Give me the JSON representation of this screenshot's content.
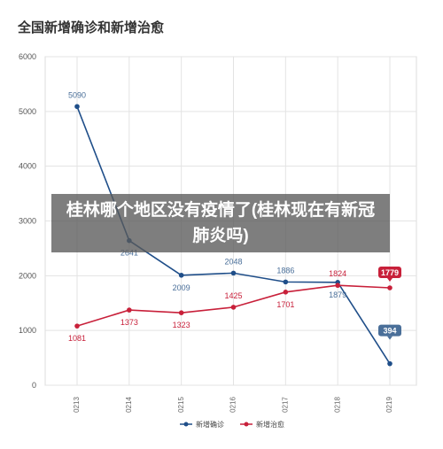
{
  "chart_data": {
    "type": "line",
    "title": "全国新增确诊和新增治愈",
    "categories": [
      "0213",
      "0214",
      "0215",
      "0216",
      "0217",
      "0218",
      "0219"
    ],
    "ylim": [
      0,
      6000
    ],
    "yticks": [
      0,
      1000,
      2000,
      3000,
      4000,
      5000,
      6000
    ],
    "grid": true,
    "legend_position": "bottom",
    "series": [
      {
        "name": "新增确诊",
        "color": "#1f4e89",
        "values": [
          5090,
          2641,
          2009,
          2048,
          1886,
          1879,
          394
        ]
      },
      {
        "name": "新增治愈",
        "color": "#c8203a",
        "values": [
          1081,
          1373,
          1323,
          1425,
          1701,
          1824,
          1779
        ]
      }
    ]
  },
  "overlay": {
    "text": "桂林哪个地区没有疫情了(桂林现在有新冠肺炎吗)"
  }
}
